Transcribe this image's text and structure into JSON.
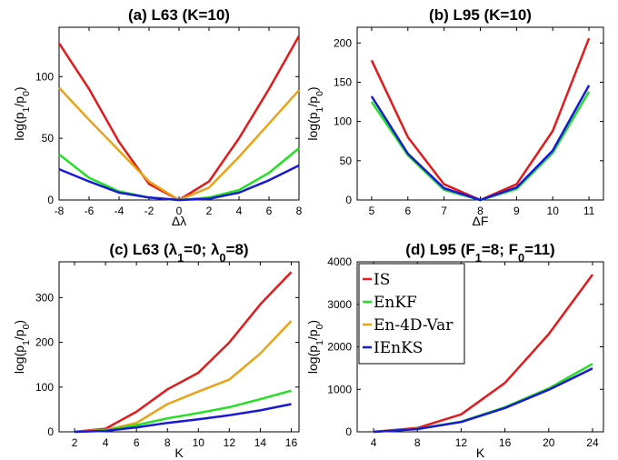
{
  "colors": {
    "IS": "#e31a1c",
    "EnKF": "#22e022",
    "En-4D-Var": "#e8a317",
    "IEnKS": "#1818d8"
  },
  "chart_data": [
    {
      "id": "a",
      "type": "line",
      "title": "(a) L63 (K=10)",
      "xlabel": "Δλ",
      "ylabel": "log(p1/p0)",
      "xlim": [
        -8,
        8
      ],
      "ylim": [
        0,
        140
      ],
      "xticks": [
        -8,
        -6,
        -4,
        -2,
        0,
        2,
        4,
        6,
        8
      ],
      "yticks": [
        0,
        50,
        100
      ],
      "x": [
        -8,
        -6,
        -4,
        -2,
        0,
        2,
        4,
        6,
        8
      ],
      "series": [
        {
          "name": "IS",
          "values": [
            127,
            90,
            47,
            13,
            0,
            15,
            50,
            90,
            133
          ]
        },
        {
          "name": "En-4D-Var",
          "values": [
            91,
            65,
            40,
            15,
            0,
            10,
            35,
            62,
            89
          ]
        },
        {
          "name": "EnKF",
          "values": [
            37,
            18,
            7,
            2,
            0,
            2,
            8,
            22,
            42
          ]
        },
        {
          "name": "IEnKS",
          "values": [
            25,
            15,
            6,
            2,
            0,
            1,
            6,
            16,
            28
          ]
        }
      ]
    },
    {
      "id": "b",
      "type": "line",
      "title": "(b) L95 (K=10)",
      "xlabel": "ΔF",
      "ylabel": "log(p1/p0)",
      "xlim": [
        4.6,
        11.4
      ],
      "ylim": [
        0,
        220
      ],
      "xticks": [
        5,
        6,
        7,
        8,
        9,
        10,
        11
      ],
      "yticks": [
        0,
        50,
        100,
        150,
        200
      ],
      "x": [
        5,
        6,
        7,
        8,
        9,
        10,
        11
      ],
      "series": [
        {
          "name": "IS",
          "values": [
            178,
            80,
            20,
            0,
            20,
            88,
            206
          ]
        },
        {
          "name": "EnKF",
          "values": [
            125,
            57,
            13,
            0,
            14,
            60,
            138
          ]
        },
        {
          "name": "IEnKS",
          "values": [
            132,
            59,
            15,
            0,
            16,
            63,
            146
          ]
        }
      ]
    },
    {
      "id": "c",
      "type": "line",
      "title": "(c) L63 (λ1=0; λ0=8)",
      "xlabel": "K",
      "ylabel": "log(p1/p0)",
      "xlim": [
        1,
        16.5
      ],
      "ylim": [
        0,
        380
      ],
      "xticks": [
        2,
        4,
        6,
        8,
        10,
        12,
        14,
        16
      ],
      "yticks": [
        0,
        100,
        200,
        300
      ],
      "x": [
        2,
        4,
        6,
        8,
        10,
        12,
        14,
        16
      ],
      "series": [
        {
          "name": "IS",
          "values": [
            0,
            7,
            45,
            95,
            132,
            200,
            285,
            357
          ]
        },
        {
          "name": "En-4D-Var",
          "values": [
            0,
            4,
            20,
            62,
            90,
            117,
            175,
            248
          ]
        },
        {
          "name": "EnKF",
          "values": [
            0,
            3,
            15,
            30,
            42,
            55,
            73,
            92
          ]
        },
        {
          "name": "IEnKS",
          "values": [
            0,
            2,
            10,
            20,
            28,
            37,
            48,
            62
          ]
        }
      ]
    },
    {
      "id": "d",
      "type": "line",
      "title": "(d) L95 (F1=8; F0=11)",
      "xlabel": "K",
      "ylabel": "log(p1/p0)",
      "xlim": [
        2.5,
        25
      ],
      "ylim": [
        0,
        4000
      ],
      "xticks": [
        4,
        8,
        12,
        16,
        20,
        24
      ],
      "yticks": [
        0,
        1000,
        2000,
        3000,
        4000
      ],
      "x": [
        4,
        8,
        12,
        16,
        20,
        24
      ],
      "series": [
        {
          "name": "IS",
          "values": [
            0,
            90,
            410,
            1150,
            2300,
            3700
          ]
        },
        {
          "name": "EnKF",
          "values": [
            0,
            70,
            240,
            580,
            1020,
            1600
          ]
        },
        {
          "name": "IEnKS",
          "values": [
            0,
            65,
            230,
            560,
            990,
            1490
          ]
        }
      ],
      "legend": {
        "placement": "top-left",
        "entries": [
          "IS",
          "EnKF",
          "En-4D-Var",
          "IEnKS"
        ]
      }
    }
  ]
}
